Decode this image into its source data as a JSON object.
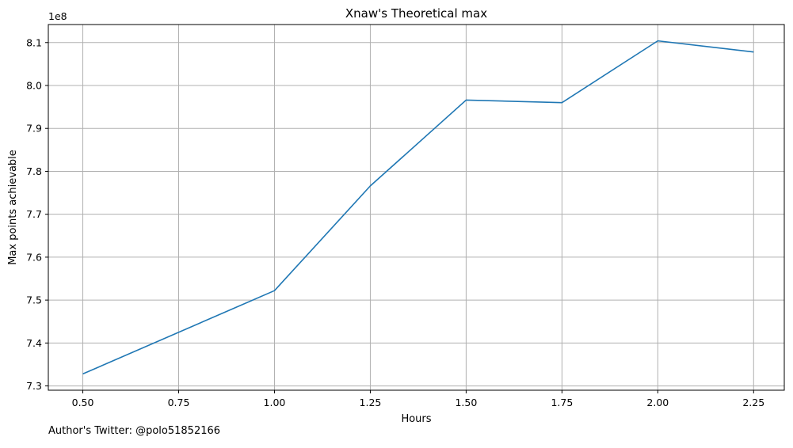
{
  "chart_data": {
    "type": "line",
    "title": "Xnaw's Theoretical max",
    "xlabel": "Hours",
    "ylabel": "Max points achievable",
    "y_offset_label": "1e8",
    "xlim": [
      0.41,
      2.33
    ],
    "ylim": [
      7.29,
      8.142
    ],
    "x_ticks": [
      0.5,
      0.75,
      1.0,
      1.25,
      1.5,
      1.75,
      2.0,
      2.25
    ],
    "x_tick_labels": [
      "0.50",
      "0.75",
      "1.00",
      "1.25",
      "1.50",
      "1.75",
      "2.00",
      "2.25"
    ],
    "y_ticks": [
      7.3,
      7.4,
      7.5,
      7.6,
      7.7,
      7.8,
      7.9,
      8.0,
      8.1
    ],
    "y_tick_labels": [
      "7.3",
      "7.4",
      "7.5",
      "7.6",
      "7.7",
      "7.8",
      "7.9",
      "8.0",
      "8.1"
    ],
    "grid": true,
    "series": [
      {
        "color": "#1f77b4",
        "x": [
          0.5,
          1.0,
          1.25,
          1.5,
          1.75,
          2.0,
          2.25
        ],
        "y": [
          7.328,
          7.522,
          7.766,
          7.966,
          7.96,
          8.104,
          8.078
        ]
      }
    ]
  },
  "footer": {
    "note": "Author's Twitter: @polo51852166"
  }
}
